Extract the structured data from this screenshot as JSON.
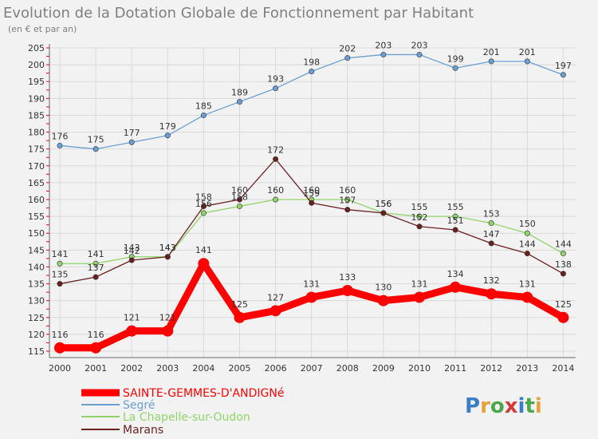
{
  "chart_data": {
    "type": "line",
    "title": "Evolution de la Dotation Globale de Fonctionnement par Habitant",
    "subtitle": "(en € et par an)",
    "xlabel": "",
    "ylabel": "",
    "x": [
      "2000",
      "2001",
      "2002",
      "2003",
      "2004",
      "2005",
      "2006",
      "2007",
      "2008",
      "2009",
      "2010",
      "2011",
      "2012",
      "2013",
      "2014"
    ],
    "ylim": [
      115,
      205
    ],
    "yticks": [
      115,
      120,
      125,
      130,
      135,
      140,
      145,
      150,
      155,
      160,
      165,
      170,
      175,
      180,
      185,
      190,
      195,
      200,
      205
    ],
    "grid": true,
    "series": [
      {
        "name": "SAINTE-GEMMES-D'ANDIGNé",
        "color": "#ff0000",
        "values": [
          116,
          116,
          121,
          121,
          141,
          125,
          127,
          131,
          133,
          130,
          131,
          134,
          132,
          131,
          125
        ]
      },
      {
        "name": "Segré",
        "color": "#6b9fd4",
        "values": [
          176,
          175,
          177,
          179,
          185,
          189,
          193,
          198,
          202,
          203,
          203,
          199,
          201,
          201,
          197
        ]
      },
      {
        "name": "La Chapelle-sur-Oudon",
        "color": "#8fd46a",
        "values": [
          141,
          141,
          143,
          143,
          156,
          158,
          160,
          160,
          160,
          156,
          155,
          155,
          153,
          150,
          144
        ]
      },
      {
        "name": "Marans",
        "color": "#6b2020",
        "values": [
          135,
          137,
          142,
          143,
          158,
          160,
          172,
          159,
          157,
          156,
          152,
          151,
          147,
          144,
          138
        ]
      }
    ]
  },
  "colors": {
    "background": "#f2f2f2",
    "grid": "#d9d9d9",
    "axis": "#666666",
    "tick_accent": "#ff0000"
  },
  "logo": {
    "text": "Proxiti"
  }
}
